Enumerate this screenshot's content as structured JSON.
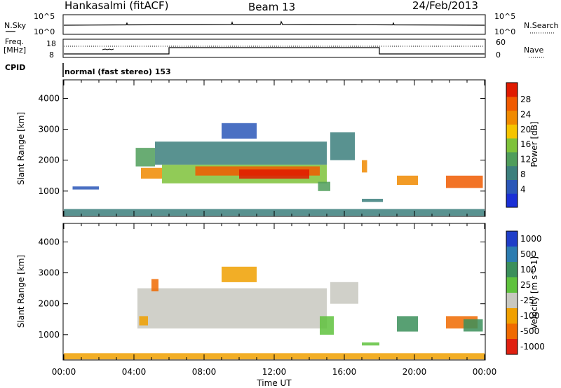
{
  "header": {
    "station": "Hankasalmi (fitACF)",
    "beam": "Beam 13",
    "date": "24/Feb/2013"
  },
  "status_panels": {
    "nsky_label": "N.Sky",
    "nsearch_label": "N.Search",
    "freq_label_line1": "Freq.",
    "freq_label_line2": "[MHz]",
    "nave_label": "Nave",
    "cpid_label": "CPID",
    "cpid_text": "normal (fast stereo) 153",
    "noise_ticks": [
      "10^5",
      "10^0"
    ],
    "freq_ticks": [
      "18",
      "8"
    ],
    "nave_ticks": [
      "60",
      "0"
    ]
  },
  "chart_data": [
    {
      "type": "heatmap",
      "name": "power",
      "xlabel": "Time UT",
      "ylabel": "Slant Range [km]",
      "xlim_hours": [
        0,
        24
      ],
      "ylim": [
        180,
        4600
      ],
      "y_ticks": [
        1000,
        2000,
        3000,
        4000
      ],
      "colorbar": {
        "label": "Power [dB]",
        "ticks": [
          "4",
          "8",
          "12",
          "16",
          "20",
          "24",
          "28"
        ],
        "colors": [
          "#1a2fd6",
          "#2a57b8",
          "#3c7f7d",
          "#4f9d5b",
          "#7ec23a",
          "#f5c400",
          "#f08a00",
          "#f05a00",
          "#e01a00"
        ]
      },
      "echo_regions": [
        {
          "t0": 0.0,
          "t1": 24.0,
          "r0": 200,
          "r1": 420,
          "level": 2
        },
        {
          "t0": 0.5,
          "t1": 2.0,
          "r0": 1050,
          "r1": 1150,
          "level": 1
        },
        {
          "t0": 4.1,
          "t1": 5.2,
          "r0": 1800,
          "r1": 2400,
          "level": 3
        },
        {
          "t0": 4.4,
          "t1": 5.6,
          "r0": 1400,
          "r1": 1750,
          "level": 6
        },
        {
          "t0": 5.2,
          "t1": 15.0,
          "r0": 1850,
          "r1": 2600,
          "level": 2
        },
        {
          "t0": 5.6,
          "t1": 15.0,
          "r0": 1250,
          "r1": 1850,
          "level": 4
        },
        {
          "t0": 7.5,
          "t1": 14.6,
          "r0": 1500,
          "r1": 1800,
          "level": 7
        },
        {
          "t0": 10.0,
          "t1": 14.0,
          "r0": 1400,
          "r1": 1700,
          "level": 8
        },
        {
          "t0": 9.0,
          "t1": 11.0,
          "r0": 2700,
          "r1": 3200,
          "level": 1
        },
        {
          "t0": 14.5,
          "t1": 15.2,
          "r0": 1000,
          "r1": 1300,
          "level": 3
        },
        {
          "t0": 15.2,
          "t1": 16.6,
          "r0": 2000,
          "r1": 2900,
          "level": 2
        },
        {
          "t0": 17.0,
          "t1": 17.3,
          "r0": 1600,
          "r1": 2000,
          "level": 6
        },
        {
          "t0": 17.0,
          "t1": 18.2,
          "r0": 650,
          "r1": 750,
          "level": 2
        },
        {
          "t0": 19.0,
          "t1": 20.2,
          "r0": 1200,
          "r1": 1500,
          "level": 6
        },
        {
          "t0": 21.8,
          "t1": 23.9,
          "r0": 1100,
          "r1": 1500,
          "level": 7
        }
      ]
    },
    {
      "type": "heatmap",
      "name": "velocity",
      "xlabel": "Time UT",
      "ylabel": "Slant Range [km]",
      "xlim_hours": [
        0,
        24
      ],
      "ylim": [
        180,
        4600
      ],
      "y_ticks": [
        1000,
        2000,
        3000,
        4000
      ],
      "x_ticks": [
        "00:00",
        "04:00",
        "08:00",
        "12:00",
        "16:00",
        "20:00",
        "00:00"
      ],
      "colorbar": {
        "label": "Velocity [m s^-1]",
        "ticks": [
          "1000",
          "500",
          "100",
          "25",
          "-25",
          "-100",
          "-500",
          "-1000"
        ],
        "colors": [
          "#1f3ec8",
          "#2c7cb0",
          "#3b8f5b",
          "#5fc23d",
          "#c8c8c0",
          "#f0a000",
          "#f06a00",
          "#e02010"
        ]
      },
      "echo_regions": [
        {
          "t0": 0.0,
          "t1": 24.0,
          "r0": 200,
          "r1": 400,
          "level": 5
        },
        {
          "t0": 4.2,
          "t1": 15.0,
          "r0": 1200,
          "r1": 2500,
          "level": 4
        },
        {
          "t0": 4.3,
          "t1": 4.8,
          "r0": 1300,
          "r1": 1600,
          "level": 5
        },
        {
          "t0": 5.0,
          "t1": 5.4,
          "r0": 2400,
          "r1": 2800,
          "level": 6
        },
        {
          "t0": 9.0,
          "t1": 11.0,
          "r0": 2700,
          "r1": 3200,
          "level": 5
        },
        {
          "t0": 14.6,
          "t1": 15.4,
          "r0": 1000,
          "r1": 1600,
          "level": 3
        },
        {
          "t0": 15.2,
          "t1": 16.8,
          "r0": 2000,
          "r1": 2700,
          "level": 4
        },
        {
          "t0": 17.0,
          "t1": 18.0,
          "r0": 650,
          "r1": 750,
          "level": 3
        },
        {
          "t0": 19.0,
          "t1": 20.2,
          "r0": 1100,
          "r1": 1600,
          "level": 2
        },
        {
          "t0": 21.8,
          "t1": 23.6,
          "r0": 1200,
          "r1": 1600,
          "level": 6
        },
        {
          "t0": 22.8,
          "t1": 23.9,
          "r0": 1100,
          "r1": 1500,
          "level": 2
        }
      ]
    }
  ],
  "time_axis": {
    "xlabel": "Time UT",
    "ticks": [
      "00:00",
      "04:00",
      "08:00",
      "12:00",
      "16:00",
      "20:00",
      "00:00"
    ]
  }
}
